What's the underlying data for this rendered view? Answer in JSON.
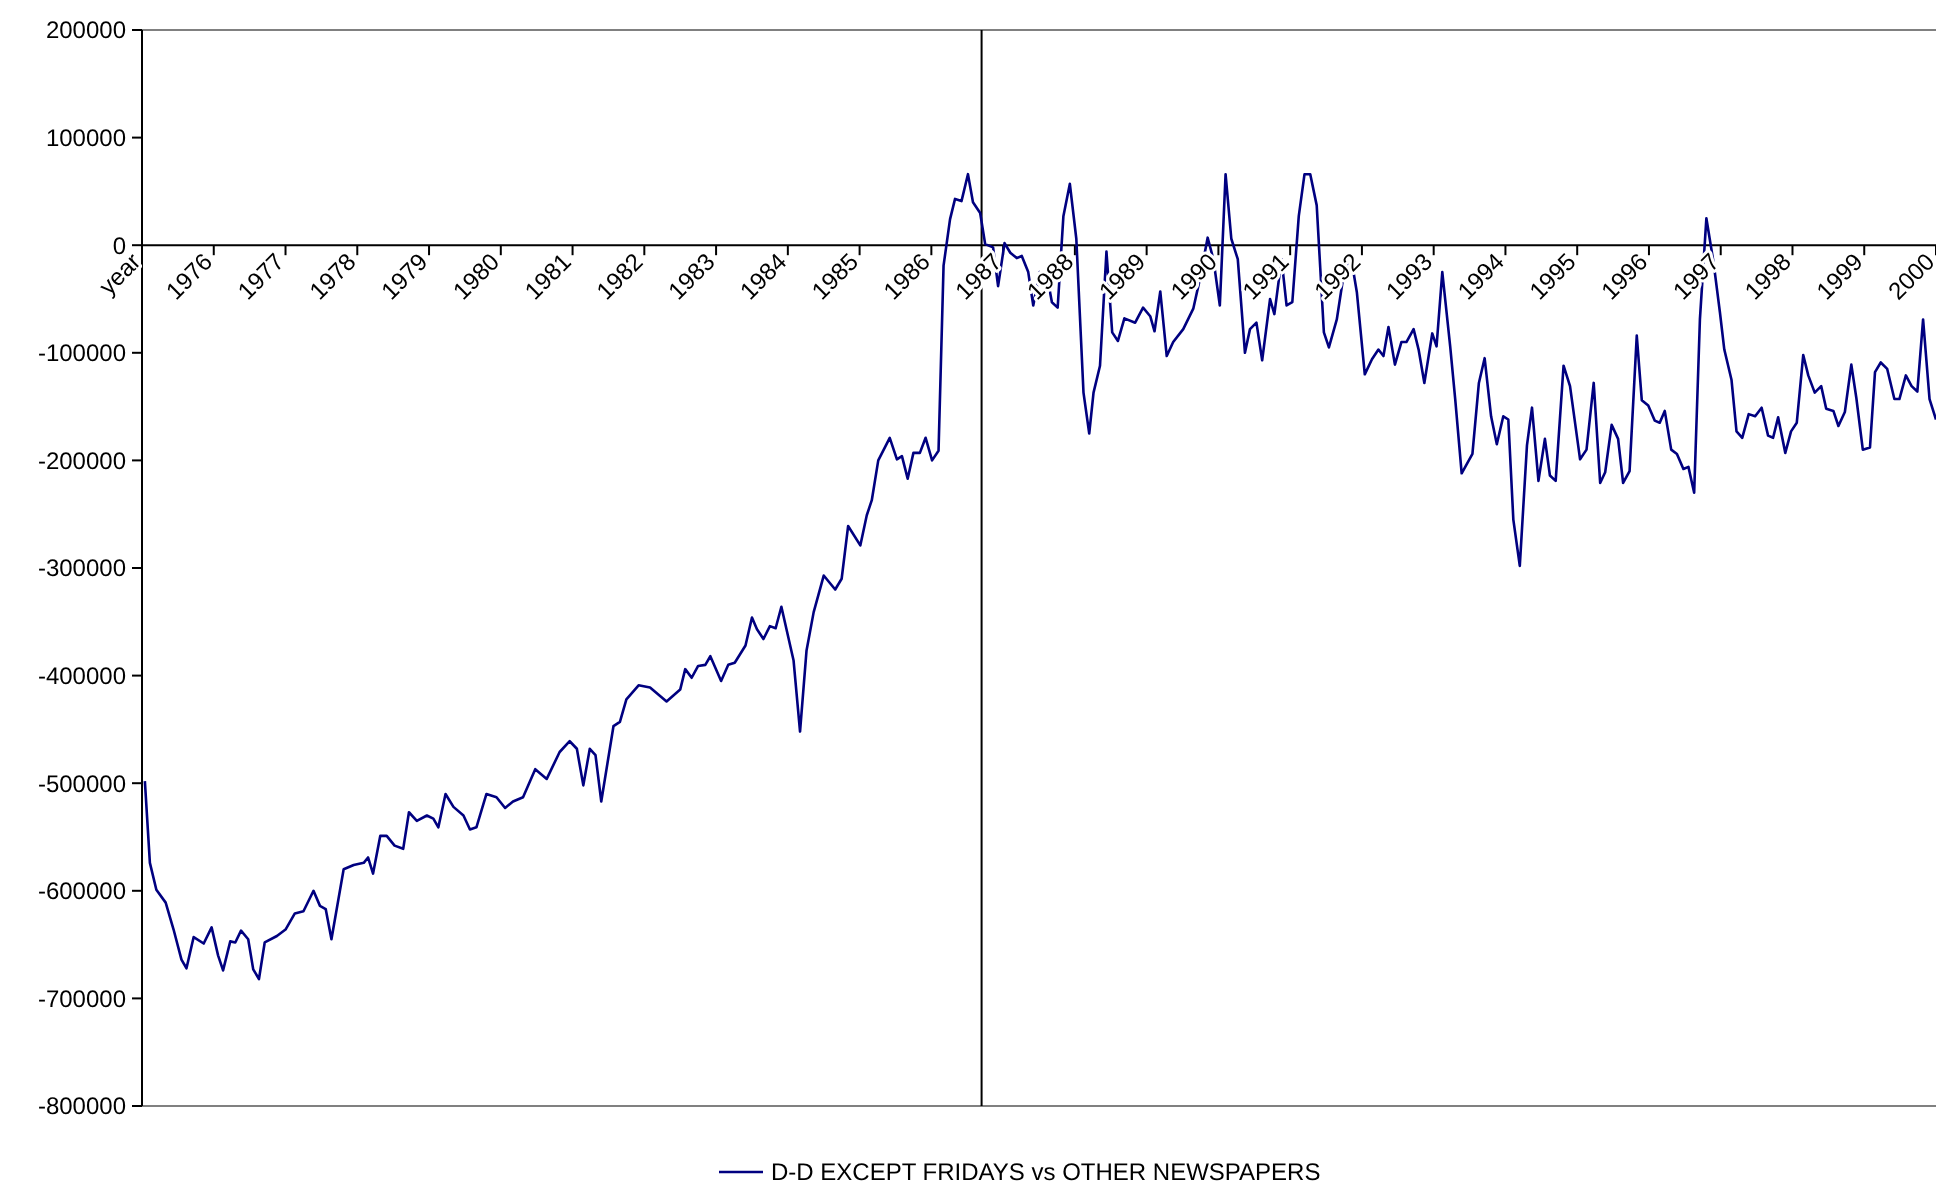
{
  "chart_data": {
    "type": "line",
    "xlim": [
      1975,
      2000
    ],
    "ylim": [
      -800000,
      200000
    ],
    "xticks": [
      {
        "value": 1975,
        "label": "year"
      },
      1976,
      1977,
      1978,
      1979,
      1980,
      1981,
      1982,
      1983,
      1984,
      1985,
      1986,
      1987,
      1988,
      1989,
      1990,
      1991,
      1992,
      1993,
      1994,
      1995,
      1996,
      1997,
      1998,
      1999,
      2000
    ],
    "yticks": [
      -800000,
      -700000,
      -600000,
      -500000,
      -400000,
      -300000,
      -200000,
      -100000,
      0,
      100000,
      200000
    ],
    "grid": false,
    "legend": "bottom",
    "marker": "none",
    "line_style": "solid",
    "ref_lines": [
      {
        "axis": "x",
        "value": 1986.7,
        "color": "#000000"
      }
    ],
    "series": [
      {
        "name": "D-D EXCEPT FRIDAYS vs OTHER NEWSPAPERS",
        "color": "#000080",
        "x": [
          1975.04,
          1975.11,
          1975.2,
          1975.33,
          1975.44,
          1975.55,
          1975.62,
          1975.72,
          1975.86,
          1975.97,
          1976.06,
          1976.13,
          1976.23,
          1976.3,
          1976.38,
          1976.48,
          1976.55,
          1976.63,
          1976.71,
          1976.88,
          1977.0,
          1977.13,
          1977.25,
          1977.39,
          1977.48,
          1977.56,
          1977.64,
          1977.81,
          1977.95,
          1978.09,
          1978.15,
          1978.22,
          1978.32,
          1978.41,
          1978.52,
          1978.64,
          1978.72,
          1978.83,
          1978.97,
          1979.06,
          1979.13,
          1979.23,
          1979.34,
          1979.48,
          1979.57,
          1979.66,
          1979.8,
          1979.94,
          1980.06,
          1980.17,
          1980.31,
          1980.48,
          1980.64,
          1980.82,
          1980.96,
          1981.06,
          1981.15,
          1981.24,
          1981.32,
          1981.4,
          1981.57,
          1981.66,
          1981.75,
          1981.92,
          1982.08,
          1982.31,
          1982.5,
          1982.57,
          1982.66,
          1982.75,
          1982.85,
          1982.92,
          1983.07,
          1983.17,
          1983.26,
          1983.41,
          1983.5,
          1983.57,
          1983.66,
          1983.75,
          1983.83,
          1983.91,
          1984.08,
          1984.17,
          1984.26,
          1984.36,
          1984.5,
          1984.66,
          1984.75,
          1984.84,
          1985.01,
          1985.1,
          1985.17,
          1985.26,
          1985.42,
          1985.52,
          1985.59,
          1985.67,
          1985.75,
          1985.84,
          1985.92,
          1986.01,
          1986.1,
          1986.17,
          1986.26,
          1986.33,
          1986.42,
          1986.51,
          1986.58,
          1986.68,
          1986.75,
          1986.86,
          1986.93,
          1987.02,
          1987.1,
          1987.19,
          1987.26,
          1987.35,
          1987.42,
          1987.51,
          1987.61,
          1987.68,
          1987.76,
          1987.84,
          1987.93,
          1988.02,
          1988.12,
          1988.2,
          1988.26,
          1988.35,
          1988.44,
          1988.52,
          1988.6,
          1988.69,
          1988.84,
          1988.95,
          1989.05,
          1989.11,
          1989.19,
          1989.28,
          1989.37,
          1989.51,
          1989.65,
          1989.74,
          1989.85,
          1989.93,
          1990.02,
          1990.1,
          1990.18,
          1990.27,
          1990.37,
          1990.44,
          1990.53,
          1990.61,
          1990.72,
          1990.78,
          1990.88,
          1990.95,
          1991.03,
          1991.12,
          1991.2,
          1991.28,
          1991.37,
          1991.47,
          1991.54,
          1991.65,
          1991.76,
          1991.85,
          1991.93,
          1992.04,
          1992.14,
          1992.23,
          1992.3,
          1992.37,
          1992.46,
          1992.55,
          1992.62,
          1992.72,
          1992.79,
          1992.87,
          1992.98,
          1993.04,
          1993.12,
          1993.23,
          1993.3,
          1993.39,
          1993.54,
          1993.63,
          1993.71,
          1993.8,
          1993.88,
          1993.97,
          1994.04,
          1994.11,
          1994.2,
          1994.3,
          1994.37,
          1994.46,
          1994.55,
          1994.62,
          1994.7,
          1994.81,
          1994.9,
          1995.04,
          1995.13,
          1995.23,
          1995.32,
          1995.39,
          1995.48,
          1995.57,
          1995.64,
          1995.73,
          1995.83,
          1995.9,
          1995.99,
          1996.08,
          1996.15,
          1996.22,
          1996.31,
          1996.39,
          1996.48,
          1996.55,
          1996.63,
          1996.71,
          1996.8,
          1996.9,
          1996.99,
          1997.05,
          1997.15,
          1997.22,
          1997.3,
          1997.39,
          1997.48,
          1997.57,
          1997.66,
          1997.73,
          1997.8,
          1997.9,
          1997.98,
          1998.06,
          1998.15,
          1998.22,
          1998.31,
          1998.4,
          1998.47,
          1998.57,
          1998.64,
          1998.73,
          1998.82,
          1998.89,
          1998.98,
          1999.08,
          1999.15,
          1999.23,
          1999.32,
          1999.42,
          1999.49,
          1999.58,
          1999.66,
          1999.74,
          1999.82,
          1999.91,
          2000.0
        ],
        "values": [
          -498000,
          -574000,
          -599000,
          -611000,
          -636000,
          -664000,
          -672000,
          -643000,
          -649000,
          -634000,
          -660000,
          -674000,
          -647000,
          -648000,
          -637000,
          -645000,
          -673000,
          -682000,
          -648000,
          -642000,
          -636000,
          -621000,
          -619000,
          -600000,
          -614000,
          -617000,
          -645000,
          -580000,
          -576000,
          -574000,
          -569000,
          -584000,
          -549000,
          -549000,
          -558000,
          -561000,
          -527000,
          -535000,
          -530000,
          -533000,
          -541000,
          -510000,
          -522000,
          -530000,
          -543000,
          -541000,
          -510000,
          -513000,
          -523000,
          -517000,
          -513000,
          -487000,
          -496000,
          -471000,
          -461000,
          -468000,
          -502000,
          -468000,
          -474000,
          -517000,
          -447000,
          -443000,
          -422000,
          -409000,
          -411000,
          -424000,
          -413000,
          -394000,
          -402000,
          -391000,
          -390000,
          -382000,
          -405000,
          -390000,
          -388000,
          -372000,
          -346000,
          -357000,
          -366000,
          -354000,
          -356000,
          -336000,
          -386000,
          -452000,
          -377000,
          -341000,
          -307000,
          -320000,
          -310000,
          -261000,
          -279000,
          -251000,
          -237000,
          -200000,
          -179000,
          -199000,
          -196000,
          -217000,
          -193000,
          -193000,
          -179000,
          -200000,
          -191000,
          -19000,
          24000,
          43000,
          41000,
          66000,
          40000,
          30000,
          1000,
          -2000,
          -38000,
          2000,
          -7000,
          -12000,
          -10000,
          -25000,
          -56000,
          -25000,
          -28000,
          -53000,
          -58000,
          27000,
          57000,
          6000,
          -137000,
          -175000,
          -137000,
          -112000,
          -6000,
          -81000,
          -89000,
          -68000,
          -72000,
          -58000,
          -66000,
          -80000,
          -43000,
          -103000,
          -90000,
          -78000,
          -59000,
          -32000,
          7000,
          -13000,
          -56000,
          66000,
          6000,
          -13000,
          -100000,
          -78000,
          -72000,
          -107000,
          -50000,
          -64000,
          -13000,
          -56000,
          -53000,
          27000,
          66000,
          66000,
          37000,
          -81000,
          -95000,
          -69000,
          -21000,
          -12000,
          -44000,
          -120000,
          -106000,
          -97000,
          -103000,
          -76000,
          -111000,
          -90000,
          -90000,
          -78000,
          -97000,
          -128000,
          -82000,
          -94000,
          -25000,
          -94000,
          -143000,
          -212000,
          -194000,
          -128000,
          -105000,
          -159000,
          -185000,
          -159000,
          -162000,
          -255000,
          -298000,
          -186000,
          -151000,
          -219000,
          -180000,
          -214000,
          -219000,
          -112000,
          -131000,
          -199000,
          -190000,
          -128000,
          -221000,
          -211000,
          -167000,
          -180000,
          -221000,
          -210000,
          -84000,
          -144000,
          -149000,
          -163000,
          -165000,
          -154000,
          -190000,
          -194000,
          -208000,
          -206000,
          -230000,
          -69000,
          25000,
          -16000,
          -63000,
          -97000,
          -125000,
          -173000,
          -179000,
          -157000,
          -159000,
          -151000,
          -177000,
          -179000,
          -160000,
          -193000,
          -173000,
          -165000,
          -102000,
          -121000,
          -137000,
          -131000,
          -152000,
          -154000,
          -168000,
          -155000,
          -111000,
          -142000,
          -190000,
          -188000,
          -118000,
          -109000,
          -115000,
          -143000,
          -143000,
          -121000,
          -131000,
          -136000,
          -69000,
          -143000,
          -162000
        ]
      }
    ]
  }
}
